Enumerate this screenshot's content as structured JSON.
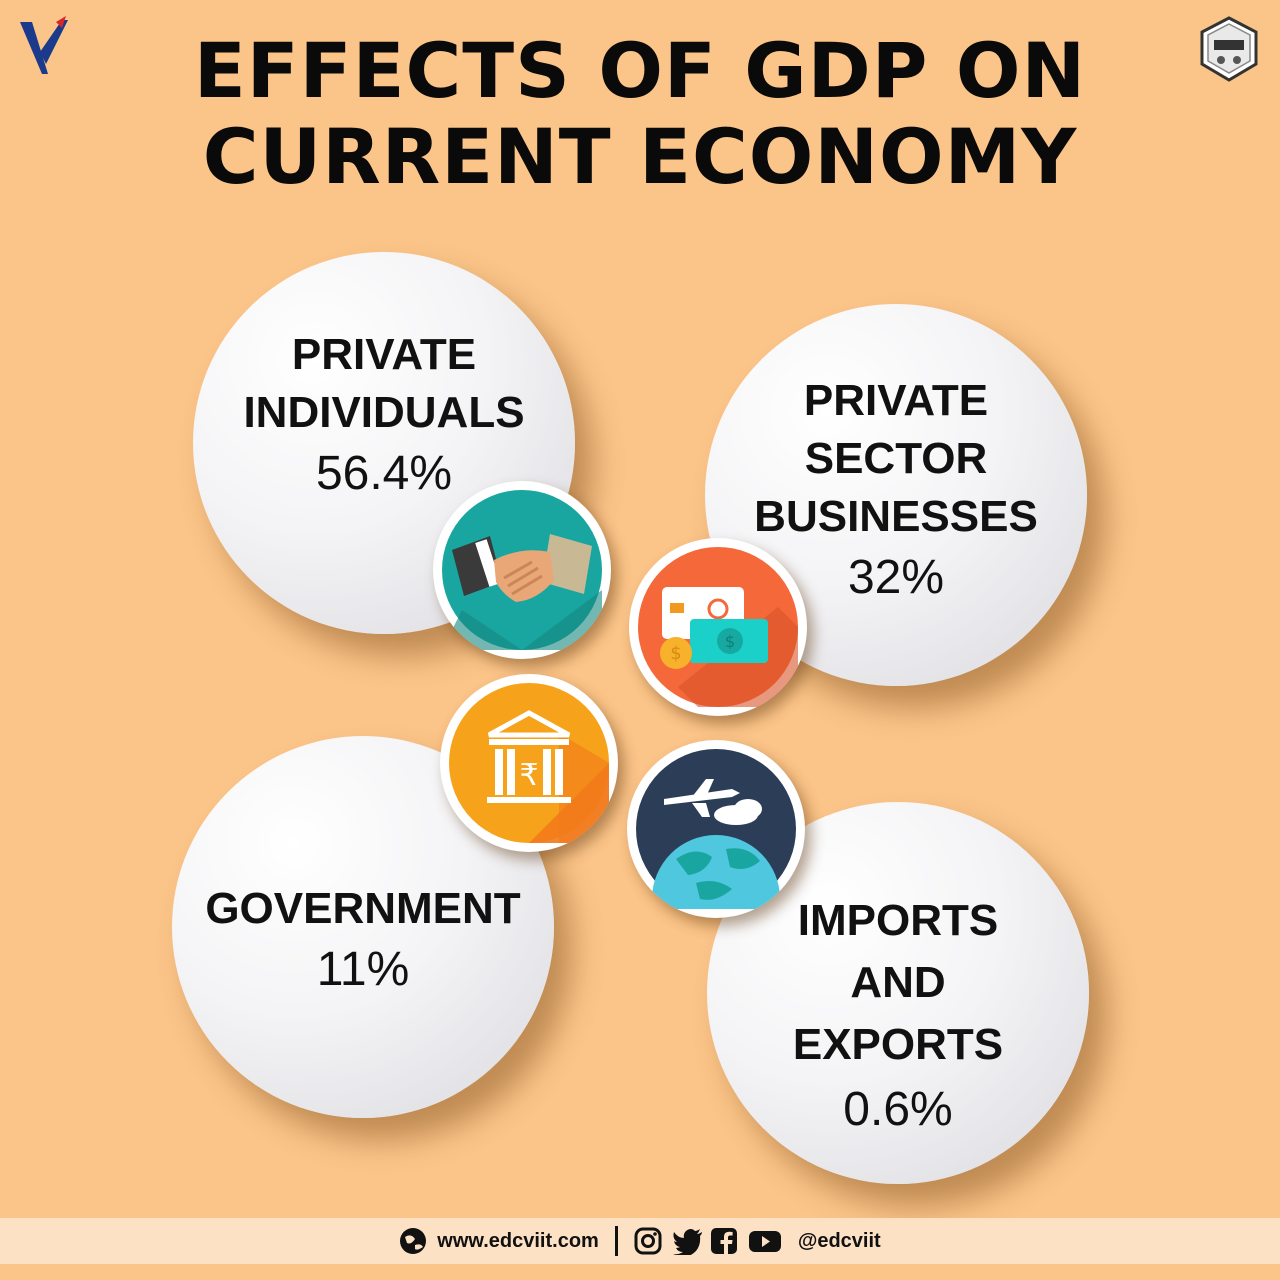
{
  "title": {
    "line1": "EFFECTS OF GDP ON",
    "line2": "CURRENT ECONOMY"
  },
  "logos": {
    "left": "vishwakarma-institute-logo",
    "right": "edc-logo"
  },
  "sectors": [
    {
      "label_lines": [
        "PRIVATE",
        "INDIVIDUALS"
      ],
      "value": "56.4%",
      "icon": "handshake-icon"
    },
    {
      "label_lines": [
        "PRIVATE",
        "SECTOR",
        "BUSINESSES"
      ],
      "value": "32%",
      "icon": "card-money-icon"
    },
    {
      "label_lines": [
        "GOVERNMENT"
      ],
      "value": "11%",
      "icon": "bank-rupee-icon"
    },
    {
      "label_lines": [
        "IMPORTS",
        "AND",
        "EXPORTS"
      ],
      "value": "0.6%",
      "icon": "plane-globe-icon"
    }
  ],
  "footer": {
    "website": "www.edcviit.com",
    "handle": "@edcviit",
    "social_icons": [
      "instagram-icon",
      "twitter-icon",
      "facebook-icon",
      "youtube-icon"
    ]
  },
  "colors": {
    "background": "#fbc488",
    "footer": "#fde1c4",
    "teal": "#1aa6a0",
    "orange": "#f39a1e",
    "navy": "#2c3e57"
  }
}
